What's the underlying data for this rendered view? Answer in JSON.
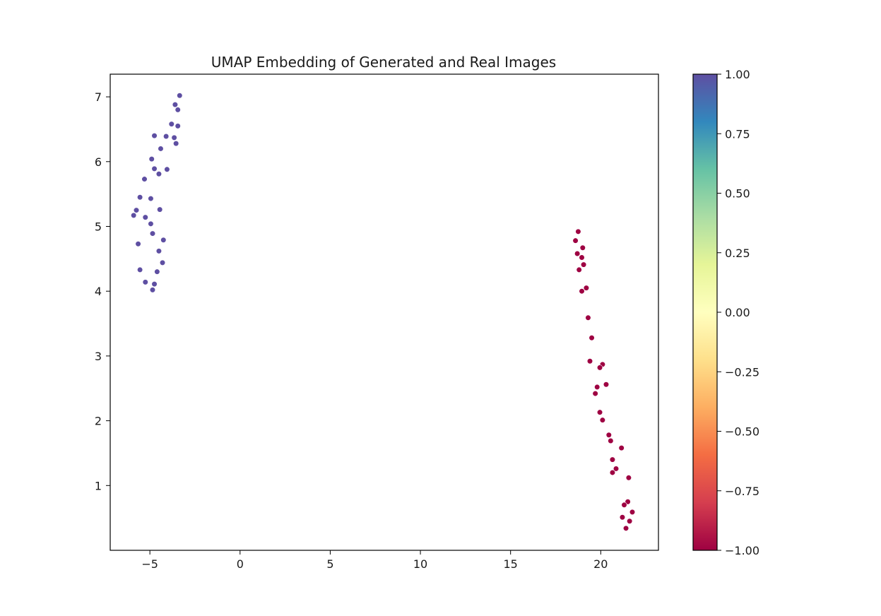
{
  "chart_data": {
    "type": "scatter",
    "title": "UMAP Embedding of Generated and Real Images",
    "xlabel": "",
    "ylabel": "",
    "xlim": [
      -7.2,
      23.2
    ],
    "ylim": [
      0.0,
      7.35
    ],
    "xticks": [
      -5,
      0,
      5,
      10,
      15,
      20
    ],
    "yticks": [
      1,
      2,
      3,
      4,
      5,
      6,
      7
    ],
    "grid": false,
    "colorbar": {
      "colormap": "Spectral",
      "range": [
        -1.0,
        1.0
      ],
      "ticks": [
        -1.0,
        -0.75,
        -0.5,
        -0.25,
        0.0,
        0.25,
        0.5,
        0.75,
        1.0
      ],
      "tick_labels": [
        "−1.00",
        "−0.75",
        "−0.50",
        "−0.25",
        "0.00",
        "0.25",
        "0.50",
        "0.75",
        "1.00"
      ]
    },
    "series": [
      {
        "value": 1.0,
        "color": "#5e4fa2",
        "points": [
          [
            -3.35,
            7.02
          ],
          [
            -3.6,
            6.88
          ],
          [
            -3.45,
            6.8
          ],
          [
            -3.8,
            6.58
          ],
          [
            -3.45,
            6.55
          ],
          [
            -4.75,
            6.4
          ],
          [
            -4.1,
            6.39
          ],
          [
            -3.65,
            6.37
          ],
          [
            -3.55,
            6.28
          ],
          [
            -4.4,
            6.2
          ],
          [
            -4.9,
            6.04
          ],
          [
            -4.75,
            5.89
          ],
          [
            -4.05,
            5.88
          ],
          [
            -4.5,
            5.81
          ],
          [
            -5.3,
            5.73
          ],
          [
            -5.55,
            5.45
          ],
          [
            -4.95,
            5.43
          ],
          [
            -5.75,
            5.25
          ],
          [
            -4.45,
            5.26
          ],
          [
            -5.9,
            5.17
          ],
          [
            -5.25,
            5.14
          ],
          [
            -4.95,
            5.04
          ],
          [
            -4.85,
            4.89
          ],
          [
            -4.25,
            4.79
          ],
          [
            -5.65,
            4.73
          ],
          [
            -4.5,
            4.62
          ],
          [
            -4.3,
            4.44
          ],
          [
            -5.55,
            4.33
          ],
          [
            -4.6,
            4.3
          ],
          [
            -5.25,
            4.14
          ],
          [
            -4.75,
            4.11
          ],
          [
            -4.85,
            4.02
          ]
        ]
      },
      {
        "value": -1.0,
        "color": "#9e0142",
        "points": [
          [
            18.75,
            4.92
          ],
          [
            18.6,
            4.78
          ],
          [
            19.0,
            4.67
          ],
          [
            18.7,
            4.58
          ],
          [
            18.95,
            4.52
          ],
          [
            19.05,
            4.41
          ],
          [
            18.8,
            4.33
          ],
          [
            19.2,
            4.05
          ],
          [
            18.95,
            4.0
          ],
          [
            19.3,
            3.59
          ],
          [
            19.5,
            3.28
          ],
          [
            19.4,
            2.92
          ],
          [
            20.1,
            2.87
          ],
          [
            19.95,
            2.82
          ],
          [
            20.3,
            2.56
          ],
          [
            19.8,
            2.52
          ],
          [
            19.7,
            2.42
          ],
          [
            19.95,
            2.13
          ],
          [
            20.1,
            2.01
          ],
          [
            20.45,
            1.78
          ],
          [
            20.55,
            1.69
          ],
          [
            21.15,
            1.58
          ],
          [
            20.65,
            1.4
          ],
          [
            20.85,
            1.26
          ],
          [
            20.65,
            1.2
          ],
          [
            21.55,
            1.12
          ],
          [
            21.5,
            0.75
          ],
          [
            21.3,
            0.7
          ],
          [
            21.75,
            0.59
          ],
          [
            21.2,
            0.51
          ],
          [
            21.6,
            0.45
          ],
          [
            21.4,
            0.34
          ]
        ]
      }
    ]
  }
}
